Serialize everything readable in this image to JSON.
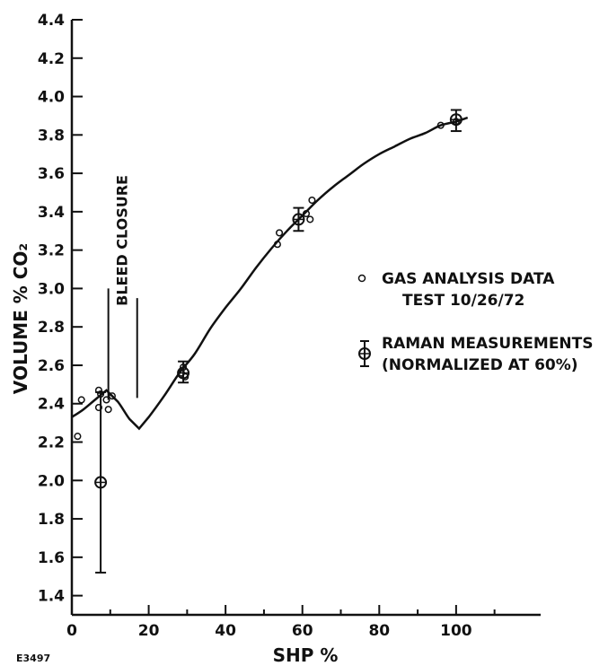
{
  "chart_data": {
    "type": "scatter",
    "xlabel": "SHP %",
    "ylabel": "VOLUME % CO₂",
    "xlim": [
      0,
      122
    ],
    "ylim": [
      1.3,
      4.4
    ],
    "x_ticks": [
      0,
      20,
      40,
      60,
      80,
      100
    ],
    "y_ticks": [
      1.4,
      1.6,
      1.8,
      2.0,
      2.2,
      2.4,
      2.6,
      2.8,
      3.0,
      3.2,
      3.4,
      3.6,
      3.8,
      4.0,
      4.2,
      4.4
    ],
    "y_tick_labels": [
      "1.4",
      "1.6",
      "1.8",
      "2.0",
      "2.2",
      "2.4",
      "2.6",
      "2.8",
      "3.0",
      "3.2",
      "3.4",
      "3.6",
      "3.8",
      "4.0",
      "4.2",
      "4.4"
    ],
    "grid": false,
    "legend_position": "right",
    "annotations": [
      "BLEED CLOSURE"
    ],
    "figure_id": "E3497",
    "series": [
      {
        "name": "GAS ANALYSIS DATA",
        "name_line2": "TEST 10/26/72",
        "marker": "open-circle",
        "points": [
          [
            1.5,
            2.23
          ],
          [
            2.5,
            2.42
          ],
          [
            7,
            2.38
          ],
          [
            7,
            2.47
          ],
          [
            7.5,
            2.45
          ],
          [
            9,
            2.42
          ],
          [
            9.5,
            2.37
          ],
          [
            10.5,
            2.44
          ],
          [
            28.5,
            2.56
          ],
          [
            29,
            2.59
          ],
          [
            29.5,
            2.54
          ],
          [
            53.5,
            3.23
          ],
          [
            54,
            3.29
          ],
          [
            61,
            3.39
          ],
          [
            62,
            3.36
          ],
          [
            62.5,
            3.46
          ],
          [
            96,
            3.85
          ],
          [
            100,
            3.87
          ]
        ]
      },
      {
        "name": "RAMAN MEASUREMENTS",
        "name_line2": "(NORMALIZED AT 60%)",
        "marker": "circle-cross-errorbar",
        "points": [
          {
            "x": 7.5,
            "y": 1.99,
            "ylow": 1.52,
            "yhigh": 2.46
          },
          {
            "x": 29,
            "y": 2.56,
            "ylow": 2.51,
            "yhigh": 2.62
          },
          {
            "x": 59,
            "y": 3.36,
            "ylow": 3.3,
            "yhigh": 3.42
          },
          {
            "x": 100,
            "y": 3.88,
            "ylow": 3.82,
            "yhigh": 3.93
          }
        ]
      },
      {
        "name": "",
        "type": "line",
        "x": [
          0,
          3,
          6,
          9,
          12,
          15,
          17.5,
          20,
          24,
          28,
          32,
          36,
          40,
          44,
          48,
          52,
          56,
          60,
          64,
          68,
          72,
          76,
          80,
          84,
          88,
          92,
          96,
          100,
          103
        ],
        "y": [
          2.33,
          2.37,
          2.42,
          2.47,
          2.41,
          2.32,
          2.27,
          2.33,
          2.44,
          2.56,
          2.66,
          2.79,
          2.9,
          3.0,
          3.11,
          3.21,
          3.3,
          3.38,
          3.46,
          3.53,
          3.59,
          3.65,
          3.7,
          3.74,
          3.78,
          3.81,
          3.85,
          3.87,
          3.89
        ]
      }
    ]
  },
  "bleed_closure_x": [
    9.5,
    17
  ]
}
